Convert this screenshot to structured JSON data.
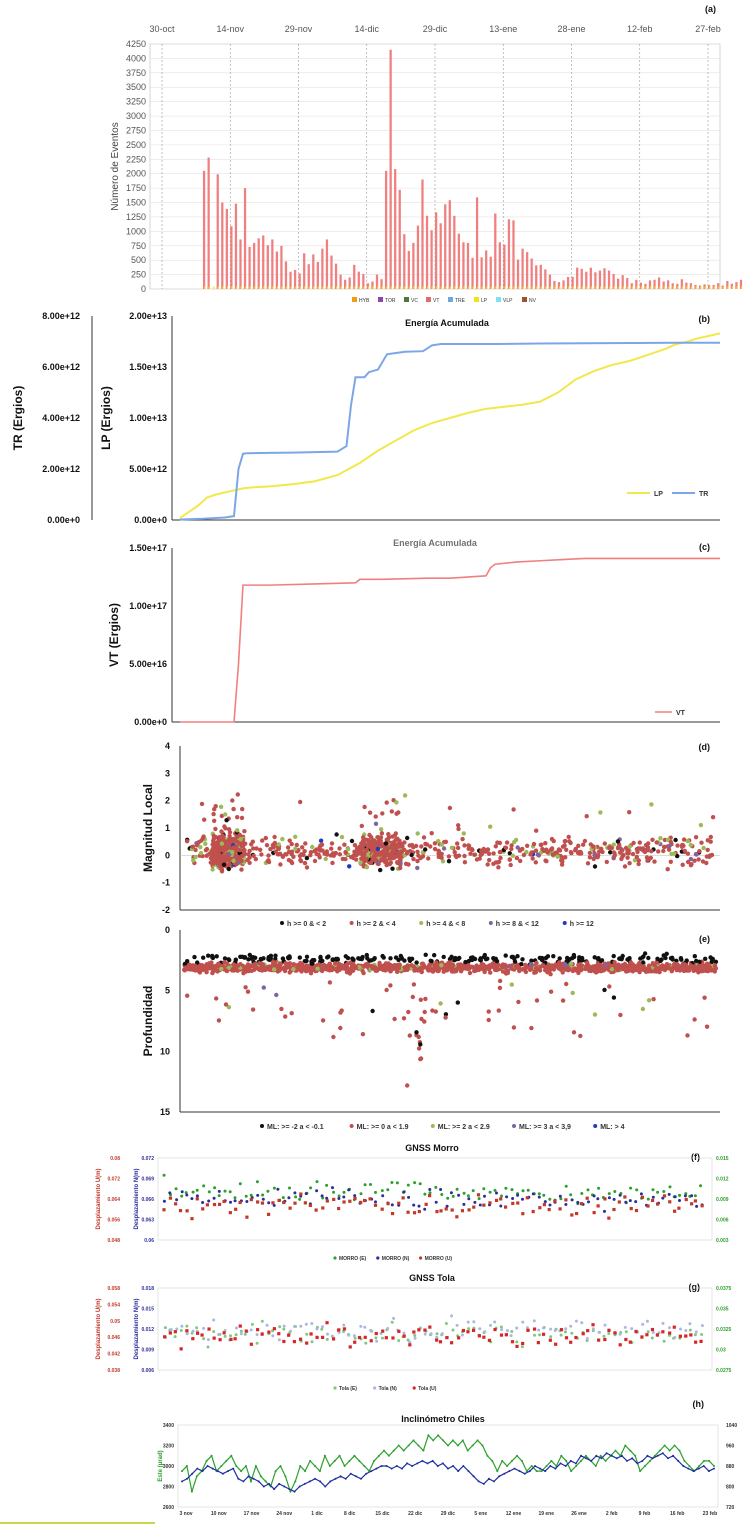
{
  "chart_data": [
    {
      "id": "a",
      "type": "bar",
      "panel_label": "(a)",
      "ylabel": "Número de Eventos",
      "ylim": [
        0,
        4250
      ],
      "yticks": [
        "0",
        "250",
        "500",
        "750",
        "1000",
        "1250",
        "1500",
        "1750",
        "2000",
        "2250",
        "2500",
        "2750",
        "3000",
        "3250",
        "3500",
        "3750",
        "4000",
        "4250"
      ],
      "xticks": [
        "30-oct",
        "14-nov",
        "29-nov",
        "14-dic",
        "29-dic",
        "13-ene",
        "28-ene",
        "12-feb",
        "27-feb"
      ],
      "legend": [
        {
          "name": "HYB",
          "color": "#f39c12"
        },
        {
          "name": "TOR",
          "color": "#8e44ad"
        },
        {
          "name": "VC",
          "color": "#4a7a3a"
        },
        {
          "name": "VT",
          "color": "#e46a6a"
        },
        {
          "name": "TRE",
          "color": "#6fa8dc"
        },
        {
          "name": "LP",
          "color": "#f1e21b"
        },
        {
          "name": "VLP",
          "color": "#7fe3ef"
        },
        {
          "name": "NV",
          "color": "#a0522d"
        }
      ],
      "vt_color": "#f08080",
      "lp_color": "#f1e21b",
      "vt_day0": 9,
      "vt_values": [
        2050,
        2280,
        0,
        1990,
        1500,
        1390,
        1090,
        1480,
        860,
        1750,
        730,
        800,
        880,
        930,
        760,
        860,
        650,
        750,
        480,
        300,
        330,
        270,
        620,
        430,
        600,
        470,
        700,
        860,
        580,
        440,
        250,
        160,
        200,
        420,
        300,
        260,
        100,
        130,
        250,
        170,
        2050,
        4150,
        2080,
        1720,
        950,
        660,
        800,
        1100,
        1900,
        1270,
        1020,
        1330,
        1140,
        1470,
        1540,
        1270,
        960,
        810,
        800,
        540,
        1590,
        550,
        670,
        560,
        1310,
        810,
        770,
        1210,
        1190,
        510,
        700,
        640,
        530,
        410,
        420,
        340,
        250,
        140,
        120,
        150,
        210,
        210,
        370,
        350,
        300,
        370,
        290,
        320,
        360,
        320,
        260,
        180,
        240,
        190,
        100,
        160,
        110,
        90,
        150,
        160,
        200,
        130,
        150,
        100,
        90,
        170,
        110,
        100,
        70,
        60,
        80,
        70,
        70,
        100,
        60,
        140,
        90,
        120,
        160
      ]
    },
    {
      "id": "b",
      "type": "line",
      "panel_label": "(b)",
      "title": "Energía Acumulada",
      "ylabel_left_outer": "TR (Ergios)",
      "ylabel_left_inner": "LP (Ergios)",
      "yticks_tr": [
        "0.00e+0",
        "2.00e+12",
        "4.00e+12",
        "6.00e+12",
        "8.00e+12"
      ],
      "yticks_lp": [
        "0.00e+0",
        "5.00e+12",
        "1.00e+13",
        "1.50e+13",
        "2.00e+13"
      ],
      "ylim_tr": [
        0,
        8000000000000.0
      ],
      "ylim_lp": [
        0,
        20000000000000.0
      ],
      "series": [
        {
          "name": "LP",
          "color": "#f1e84a",
          "axis": "lp",
          "x": [
            0,
            2,
            4,
            6,
            8,
            10,
            12,
            14,
            16,
            20,
            25,
            30,
            35,
            40,
            42,
            44,
            46,
            48,
            50,
            52,
            56,
            60,
            64,
            68,
            72,
            76,
            80,
            84,
            88,
            92,
            96,
            100,
            104,
            108,
            110,
            112,
            115,
            118,
            120
          ],
          "y": [
            200000000000.0,
            800000000000.0,
            1400000000000.0,
            2200000000000.0,
            2500000000000.0,
            2700000000000.0,
            2900000000000.0,
            3100000000000.0,
            3200000000000.0,
            3300000000000.0,
            3500000000000.0,
            3800000000000.0,
            4400000000000.0,
            5600000000000.0,
            6200000000000.0,
            6800000000000.0,
            7300000000000.0,
            7800000000000.0,
            8300000000000.0,
            8800000000000.0,
            9500000000000.0,
            10000000000000.0,
            10500000000000.0,
            10900000000000.0,
            11100000000000.0,
            11300000000000.0,
            11600000000000.0,
            12500000000000.0,
            13800000000000.0,
            14600000000000.0,
            15200000000000.0,
            15600000000000.0,
            16200000000000.0,
            16800000000000.0,
            17200000000000.0,
            17400000000000.0,
            17800000000000.0,
            18100000000000.0,
            18300000000000.0
          ]
        },
        {
          "name": "TR",
          "color": "#7ba7e8",
          "axis": "tr",
          "x": [
            0,
            5,
            10,
            12,
            13,
            14,
            15,
            20,
            25,
            30,
            35,
            37,
            38,
            39,
            40,
            41,
            42,
            44,
            45,
            46,
            48,
            50,
            54,
            56,
            58,
            60,
            70,
            80,
            90,
            100,
            110,
            120
          ],
          "y": [
            20000000000.0,
            50000000000.0,
            100000000000.0,
            150000000000.0,
            2000000000000.0,
            2600000000000.0,
            2620000000000.0,
            2630000000000.0,
            2640000000000.0,
            2660000000000.0,
            2680000000000.0,
            2900000000000.0,
            4500000000000.0,
            5600000000000.0,
            5600000000000.0,
            5600000000000.0,
            5800000000000.0,
            5900000000000.0,
            6200000000000.0,
            6500000000000.0,
            6550000000000.0,
            6600000000000.0,
            6620000000000.0,
            6850000000000.0,
            6900000000000.0,
            6900000000000.0,
            6900000000000.0,
            6920000000000.0,
            6930000000000.0,
            6940000000000.0,
            6950000000000.0,
            6950000000000.0
          ]
        }
      ]
    },
    {
      "id": "c",
      "type": "line",
      "panel_label": "(c)",
      "title": "Energía Acumulada",
      "ylabel": "VT (Ergios)",
      "yticks": [
        "0.00e+0",
        "5.00e+16",
        "1.00e+17",
        "1.50e+17"
      ],
      "ylim": [
        0,
        1.5e+17
      ],
      "series": [
        {
          "name": "VT",
          "color": "#f08080",
          "x": [
            0,
            10,
            12,
            13,
            14,
            20,
            30,
            39,
            40,
            45,
            55,
            60,
            68,
            69,
            70,
            75,
            80,
            85,
            90,
            100,
            110,
            120
          ],
          "y": [
            0,
            0,
            0.0,
            5e+16,
            1.18e+17,
            1.18e+17,
            1.19e+17,
            1.2e+17,
            1.23e+17,
            1.23e+17,
            1.24e+17,
            1.24e+17,
            1.26e+17,
            1.33e+17,
            1.36e+17,
            1.38e+17,
            1.39e+17,
            1.4e+17,
            1.41e+17,
            1.41e+17,
            1.41e+17,
            1.41e+17
          ]
        }
      ]
    },
    {
      "id": "d",
      "type": "scatter",
      "panel_label": "(d)",
      "ylabel": "Magnitud Local",
      "ylim": [
        -2,
        4
      ],
      "yticks": [
        "-2",
        "-1",
        "0",
        "1",
        "2",
        "3",
        "4"
      ],
      "legend": [
        {
          "name": "h >= 0 & < 2",
          "color": "#111111"
        },
        {
          "name": "h >= 2 & < 4",
          "color": "#c0504d"
        },
        {
          "name": "h >= 4 & < 8",
          "color": "#9bbb59"
        },
        {
          "name": "h >= 8 & < 12",
          "color": "#8064a2"
        },
        {
          "name": "h >= 12",
          "color": "#1f3bbf"
        }
      ]
    },
    {
      "id": "e",
      "type": "scatter",
      "panel_label": "(e)",
      "ylabel": "Profundidad",
      "ylim": [
        0,
        15
      ],
      "yticks": [
        "0",
        "5",
        "10",
        "15"
      ],
      "legend": [
        {
          "name": "ML: >= -2 a < -0.1",
          "color": "#111111"
        },
        {
          "name": "ML: >= 0 a < 1.9",
          "color": "#c0504d"
        },
        {
          "name": "ML: >= 2 a < 2.9",
          "color": "#9bbb59"
        },
        {
          "name": "ML: >= 3 a < 3,9",
          "color": "#8064a2"
        },
        {
          "name": "ML: > 4",
          "color": "#1f3bbf"
        }
      ]
    },
    {
      "id": "f",
      "type": "scatter",
      "panel_label": "(f)",
      "title": "GNSS Morro",
      "ylabel_left_outer": "Desplazamiento U(m)",
      "ylabel_left_inner": "Desplazamiento N(m)",
      "yticks_u": [
        "0.048",
        "0.056",
        "0.064",
        "0.072",
        "0.08"
      ],
      "yticks_n": [
        "0.06",
        "0.063",
        "0.066",
        "0.069",
        "0.072"
      ],
      "yticks_e": [
        "0.003",
        "0.006",
        "0.009",
        "0.012",
        "0.015"
      ],
      "legend": [
        {
          "name": "MORRO (E)",
          "color": "#2ca02c"
        },
        {
          "name": "MORRO (N)",
          "color": "#2c2c9c"
        },
        {
          "name": "MORRO (U)",
          "color": "#c0392b"
        }
      ]
    },
    {
      "id": "g",
      "type": "scatter",
      "panel_label": "(g)",
      "title": "GNSS Tola",
      "ylabel_left_outer": "Desplazamiento U(m)",
      "ylabel_left_inner": "Desplazamiento N(m)",
      "yticks_u": [
        "0.038",
        "0.042",
        "0.046",
        "0.05",
        "0.054",
        "0.058"
      ],
      "yticks_n": [
        "0.006",
        "0.009",
        "0.012",
        "0.015",
        "0.018"
      ],
      "yticks_e": [
        "0.0275",
        "0.03",
        "0.0325",
        "0.035",
        "0.0375"
      ],
      "legend": [
        {
          "name": "Tola (E)",
          "color": "#7fc97f"
        },
        {
          "name": "Tola (N)",
          "color": "#aab7e0"
        },
        {
          "name": "Tola (U)",
          "color": "#d62728"
        }
      ]
    },
    {
      "id": "h",
      "type": "line",
      "panel_label": "(h)",
      "title": "Inclinómetro Chiles",
      "ylabel_left": "Este (μrad)",
      "yticks_left": [
        "2600",
        "2800",
        "3000",
        "3200",
        "3400"
      ],
      "yticks_right": [
        "720",
        "800",
        "880",
        "960",
        "1040"
      ],
      "xticks": [
        "3 nov",
        "10 nov",
        "17 nov",
        "24 nov",
        "1 dic",
        "8 dic",
        "15 dic",
        "22 dic",
        "29 dic",
        "5 ene",
        "12 ene",
        "19 ene",
        "26 ene",
        "2 feb",
        "9 feb",
        "16 feb",
        "23 feb"
      ],
      "series": [
        {
          "name": "Este",
          "color": "#2ca02c",
          "values": [
            2950,
            3000,
            2750,
            2900,
            2950,
            3050,
            3100,
            2950,
            3000,
            3050,
            3100,
            3000,
            2950,
            3000,
            2850,
            3000,
            2900,
            2850,
            2800,
            2950,
            3000,
            2900,
            2750,
            2850,
            3000,
            2950,
            3050,
            3000,
            2950,
            3100,
            3000,
            3050,
            3100,
            3000,
            3050,
            3100,
            3050,
            3000,
            2950,
            3050,
            3100,
            3150,
            3100,
            3150,
            3200,
            3150,
            3200,
            3250,
            3200,
            3150,
            3300,
            3250,
            3300,
            3250,
            3200,
            3250,
            3200,
            3250,
            3150,
            3200,
            3250,
            3200,
            3100,
            3050,
            2950,
            3050,
            3000,
            3050,
            3100,
            3050,
            2950,
            3000,
            2950,
            2950,
            3000,
            3050,
            3000,
            3100,
            3050,
            2950,
            3000,
            3050,
            3100,
            3050,
            3000,
            3100,
            3050,
            3100,
            3150,
            3100,
            3200,
            3150,
            3100,
            2950,
            3000,
            3050,
            3100,
            3150,
            3200,
            3150,
            3200,
            3150,
            3050,
            3000,
            2950,
            3000,
            3050,
            3050,
            3000
          ]
        },
        {
          "name": "Norte",
          "color": "#1f2fa0",
          "values": [
            820,
            830,
            850,
            870,
            860,
            880,
            870,
            860,
            850,
            860,
            870,
            830,
            820,
            840,
            830,
            820,
            800,
            810,
            790,
            810,
            800,
            790,
            780,
            800,
            810,
            820,
            830,
            820,
            800,
            820,
            830,
            840,
            830,
            850,
            840,
            830,
            850,
            860,
            870,
            880,
            880,
            870,
            880,
            870,
            890,
            880,
            890,
            900,
            890,
            900,
            880,
            890,
            870,
            880,
            860,
            880,
            860,
            840,
            820,
            810,
            830,
            820,
            840,
            850,
            860,
            870,
            860,
            850,
            860,
            880,
            870,
            860,
            880,
            870,
            890,
            880,
            900,
            890,
            920,
            910,
            900,
            920,
            910,
            930,
            920,
            910,
            920,
            900,
            910,
            890,
            900,
            920,
            910,
            920,
            930,
            910,
            920,
            900,
            880,
            870,
            860,
            870,
            880,
            860,
            870
          ]
        }
      ]
    }
  ]
}
